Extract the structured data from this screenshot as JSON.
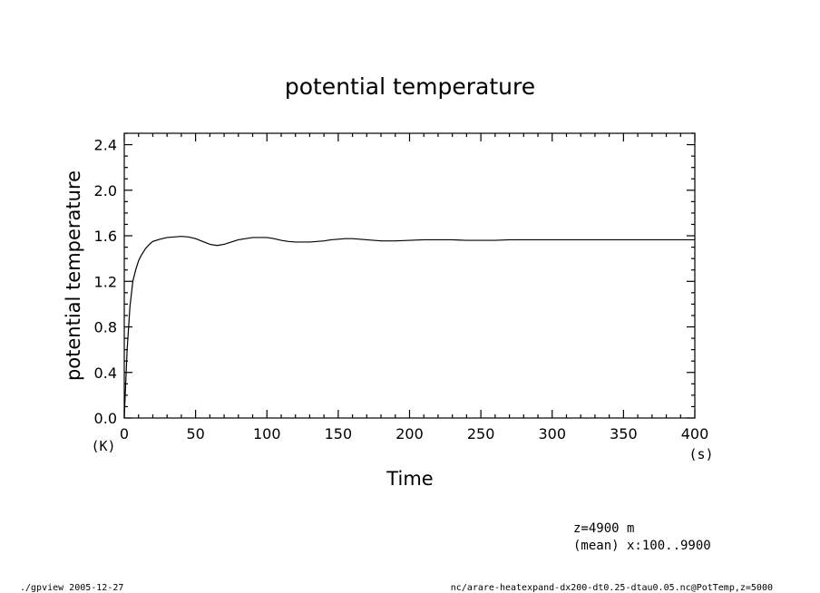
{
  "footer": {
    "left": "./gpview  2005-12-27",
    "right": "nc/arare-heatexpand-dx200-dt0.25-dtau0.05.nc@PotTemp,z=5000"
  },
  "annotation": {
    "line1": "z=4900  m",
    "line2": "(mean) x:100..9900"
  },
  "chart_data": {
    "type": "line",
    "title": "potential  temperature",
    "xlabel": "Time",
    "ylabel": "potential  temperature",
    "xunit": "(s)",
    "yunit": "(K)",
    "xlim": [
      0,
      400
    ],
    "ylim": [
      0,
      2.5
    ],
    "xticks": [
      0,
      50,
      100,
      150,
      200,
      250,
      300,
      350,
      400
    ],
    "xtick_labels": [
      "0",
      "50",
      "100",
      "150",
      "200",
      "250",
      "300",
      "350",
      "400"
    ],
    "yticks": [
      0,
      0.4,
      0.8,
      1.2,
      1.6,
      2.0,
      2.4
    ],
    "ytick_labels": [
      "0.0",
      "0.4",
      "0.8",
      "1.2",
      "1.6",
      "2.0",
      "2.4"
    ],
    "grid": false,
    "series": [
      {
        "x": [
          0,
          2,
          4,
          6,
          8,
          10,
          12,
          15,
          18,
          20,
          25,
          30,
          35,
          40,
          45,
          50,
          55,
          60,
          65,
          70,
          75,
          80,
          85,
          90,
          95,
          100,
          105,
          110,
          115,
          120,
          125,
          130,
          135,
          140,
          145,
          150,
          155,
          160,
          165,
          170,
          175,
          180,
          185,
          190,
          200,
          210,
          220,
          230,
          240,
          250,
          260,
          270,
          280,
          290,
          300,
          320,
          340,
          360,
          380,
          400
        ],
        "y": [
          0.0,
          0.6,
          0.98,
          1.2,
          1.3,
          1.38,
          1.43,
          1.49,
          1.53,
          1.55,
          1.57,
          1.585,
          1.59,
          1.595,
          1.59,
          1.575,
          1.55,
          1.525,
          1.515,
          1.525,
          1.545,
          1.565,
          1.575,
          1.585,
          1.585,
          1.585,
          1.575,
          1.56,
          1.55,
          1.545,
          1.545,
          1.545,
          1.55,
          1.555,
          1.565,
          1.57,
          1.575,
          1.575,
          1.57,
          1.565,
          1.56,
          1.555,
          1.555,
          1.555,
          1.56,
          1.565,
          1.565,
          1.565,
          1.56,
          1.56,
          1.56,
          1.565,
          1.565,
          1.565,
          1.565,
          1.565,
          1.565,
          1.565,
          1.565,
          1.565
        ]
      }
    ]
  }
}
